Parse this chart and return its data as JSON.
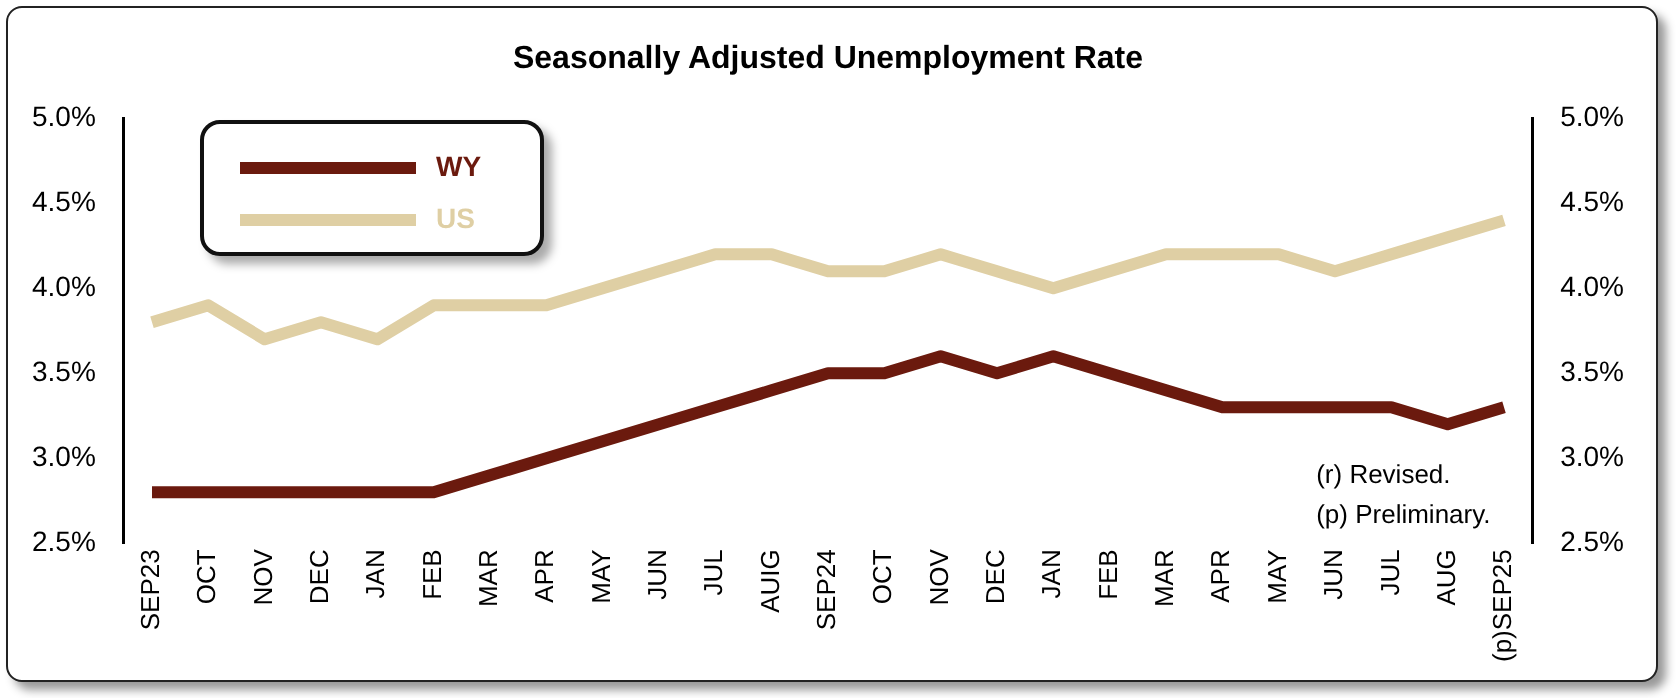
{
  "chart_data": {
    "type": "line",
    "title": "Seasonally Adjusted Unemployment Rate",
    "categories": [
      "SEP23",
      "OCT",
      "NOV",
      "DEC",
      "JAN",
      "FEB",
      "MAR",
      "APR",
      "MAY",
      "JUN",
      "JUL",
      "AUIG",
      "SEP24",
      "OCT",
      "NOV",
      "DEC",
      "JAN",
      "FEB",
      "MAR",
      "APR",
      "MAY",
      "JUN",
      "JUL",
      "AUG",
      "(p)SEP25"
    ],
    "series": [
      {
        "name": "WY",
        "color": "#6b1a0e",
        "values": [
          2.8,
          2.8,
          2.8,
          2.8,
          2.8,
          2.8,
          2.9,
          3.0,
          3.1,
          3.2,
          3.3,
          3.4,
          3.5,
          3.5,
          3.6,
          3.5,
          3.6,
          3.5,
          3.4,
          3.3,
          3.3,
          3.3,
          3.3,
          3.2,
          3.3
        ]
      },
      {
        "name": "US",
        "color": "#dfcfa4",
        "values": [
          3.8,
          3.9,
          3.7,
          3.8,
          3.7,
          3.9,
          3.9,
          3.9,
          4.0,
          4.1,
          4.2,
          4.2,
          4.1,
          4.1,
          4.2,
          4.1,
          4.0,
          4.1,
          4.2,
          4.2,
          4.2,
          4.1,
          4.2,
          4.3,
          4.4
        ]
      }
    ],
    "ylim": [
      2.5,
      5.0
    ],
    "yticks": [
      {
        "value": 2.5,
        "label": "2.5%"
      },
      {
        "value": 3.0,
        "label": "3.0%"
      },
      {
        "value": 3.5,
        "label": "3.5%"
      },
      {
        "value": 4.0,
        "label": "4.0%"
      },
      {
        "value": 4.5,
        "label": "4.5%"
      },
      {
        "value": 5.0,
        "label": "5.0%"
      }
    ],
    "y2lim": [
      2.5,
      5.0
    ],
    "y2ticks": [
      {
        "value": 2.5,
        "label": "2.5%"
      },
      {
        "value": 3.0,
        "label": "3.0%"
      },
      {
        "value": 3.5,
        "label": "3.5%"
      },
      {
        "value": 4.0,
        "label": "4.0%"
      },
      {
        "value": 4.5,
        "label": "4.5%"
      },
      {
        "value": 5.0,
        "label": "5.0%"
      }
    ],
    "annotations": [
      "(r) Revised.",
      "(p) Preliminary."
    ],
    "grid": false,
    "legend": "top left",
    "marker": "none",
    "line_style": "solid"
  }
}
